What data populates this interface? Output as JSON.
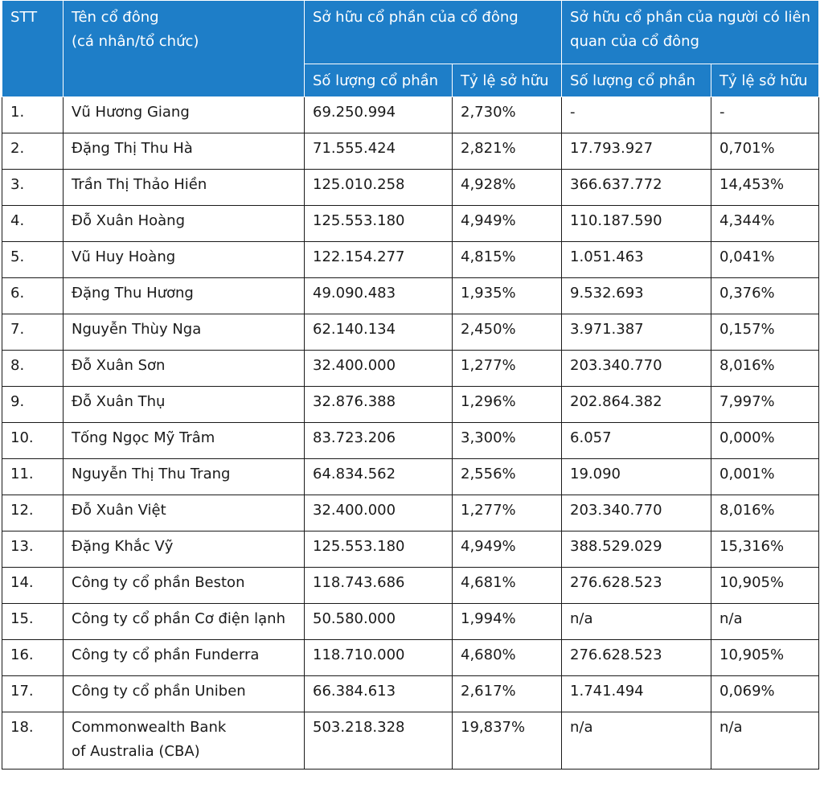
{
  "headers": {
    "stt": "STT",
    "name_line1": "Tên cổ đông",
    "name_line2": "(cá nhân/tổ chức)",
    "own_group": "Sở hữu cổ phần của cổ đông",
    "related_group": "Sở hữu cổ phần của người có liên quan của cổ đông",
    "own_qty": "Số lượng cổ phần",
    "own_pct": "Tỷ lệ sở hữu",
    "rel_qty": "Số lượng cổ phần",
    "rel_pct": "Tỷ lệ sở hữu"
  },
  "rows": [
    {
      "stt": "1.",
      "name": "Vũ Hương Giang",
      "own_qty": "69.250.994",
      "own_pct": "2,730%",
      "rel_qty": "-",
      "rel_pct": "-"
    },
    {
      "stt": "2.",
      "name": "Đặng Thị Thu Hà",
      "own_qty": "71.555.424",
      "own_pct": "2,821%",
      "rel_qty": "17.793.927",
      "rel_pct": "0,701%"
    },
    {
      "stt": "3.",
      "name": "Trần Thị Thảo Hiền",
      "own_qty": "125.010.258",
      "own_pct": "4,928%",
      "rel_qty": "366.637.772",
      "rel_pct": "14,453%"
    },
    {
      "stt": "4.",
      "name": "Đỗ Xuân Hoàng",
      "own_qty": "125.553.180",
      "own_pct": "4,949%",
      "rel_qty": "110.187.590",
      "rel_pct": "4,344%"
    },
    {
      "stt": "5.",
      "name": "Vũ Huy Hoàng",
      "own_qty": "122.154.277",
      "own_pct": "4,815%",
      "rel_qty": "1.051.463",
      "rel_pct": "0,041%"
    },
    {
      "stt": "6.",
      "name": "Đặng Thu Hương",
      "own_qty": "49.090.483",
      "own_pct": "1,935%",
      "rel_qty": "9.532.693",
      "rel_pct": "0,376%"
    },
    {
      "stt": "7.",
      "name": "Nguyễn Thùy Nga",
      "own_qty": "62.140.134",
      "own_pct": "2,450%",
      "rel_qty": "3.971.387",
      "rel_pct": "0,157%"
    },
    {
      "stt": "8.",
      "name": "Đỗ Xuân Sơn",
      "own_qty": "32.400.000",
      "own_pct": "1,277%",
      "rel_qty": "203.340.770",
      "rel_pct": "8,016%"
    },
    {
      "stt": "9.",
      "name": "Đỗ Xuân Thụ",
      "own_qty": "32.876.388",
      "own_pct": "1,296%",
      "rel_qty": "202.864.382",
      "rel_pct": "7,997%"
    },
    {
      "stt": "10.",
      "name": "Tống Ngọc Mỹ Trâm",
      "own_qty": "83.723.206",
      "own_pct": "3,300%",
      "rel_qty": "6.057",
      "rel_pct": "0,000%"
    },
    {
      "stt": "11.",
      "name": "Nguyễn Thị Thu Trang",
      "own_qty": "64.834.562",
      "own_pct": "2,556%",
      "rel_qty": "19.090",
      "rel_pct": "0,001%"
    },
    {
      "stt": "12.",
      "name": "Đỗ Xuân Việt",
      "own_qty": "32.400.000",
      "own_pct": "1,277%",
      "rel_qty": "203.340.770",
      "rel_pct": "8,016%"
    },
    {
      "stt": "13.",
      "name": "Đặng Khắc Vỹ",
      "own_qty": "125.553.180",
      "own_pct": "4,949%",
      "rel_qty": "388.529.029",
      "rel_pct": "15,316%"
    },
    {
      "stt": "14.",
      "name": "Công ty cổ phần Beston",
      "own_qty": "118.743.686",
      "own_pct": "4,681%",
      "rel_qty": "276.628.523",
      "rel_pct": "10,905%"
    },
    {
      "stt": "15.",
      "name": "Công ty cổ phần Cơ điện lạnh",
      "own_qty": "50.580.000",
      "own_pct": "1,994%",
      "rel_qty": "n/a",
      "rel_pct": "n/a"
    },
    {
      "stt": "16.",
      "name": "Công ty cổ phần Funderra",
      "own_qty": "118.710.000",
      "own_pct": "4,680%",
      "rel_qty": "276.628.523",
      "rel_pct": "10,905%"
    },
    {
      "stt": "17.",
      "name": "Công ty cổ phần Uniben",
      "own_qty": "66.384.613",
      "own_pct": "2,617%",
      "rel_qty": "1.741.494",
      "rel_pct": "0,069%"
    },
    {
      "stt": "18.",
      "name": "Commonwealth Bank",
      "name_line2": "of Australia (CBA)",
      "own_qty": "503.218.328",
      "own_pct": "19,837%",
      "rel_qty": "n/a",
      "rel_pct": "n/a"
    }
  ]
}
